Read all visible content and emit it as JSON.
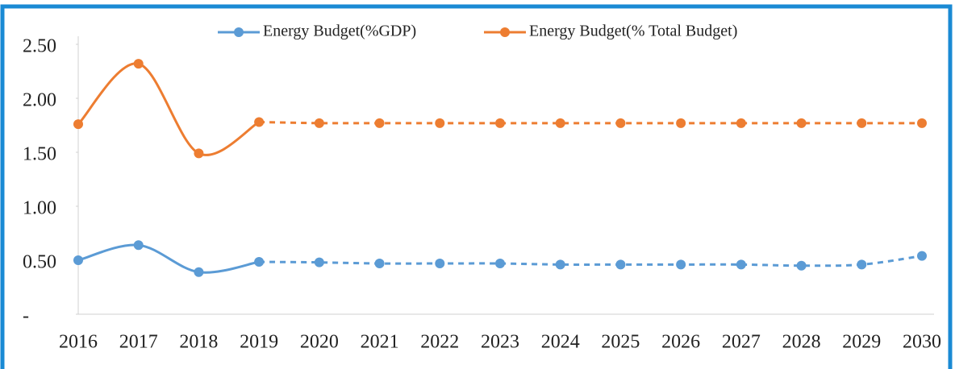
{
  "chart_data": {
    "type": "line",
    "categories": [
      "2016",
      "2017",
      "2018",
      "2019",
      "2020",
      "2021",
      "2022",
      "2023",
      "2024",
      "2025",
      "2026",
      "2027",
      "2028",
      "2029",
      "2030"
    ],
    "series": [
      {
        "name": "Energy Budget(%GDP)",
        "color": "#5b9bd5",
        "values": [
          0.5,
          0.64,
          0.39,
          0.485,
          0.48,
          0.47,
          0.47,
          0.47,
          0.46,
          0.46,
          0.46,
          0.46,
          0.45,
          0.46,
          0.54
        ]
      },
      {
        "name": "Energy Budget(% Total Budget)",
        "color": "#ed7d31",
        "values": [
          1.76,
          2.32,
          1.49,
          1.78,
          1.77,
          1.77,
          1.77,
          1.77,
          1.77,
          1.77,
          1.77,
          1.77,
          1.77,
          1.77,
          1.77
        ]
      }
    ],
    "dashed_from_index": 3,
    "ylim": [
      0,
      2.5
    ],
    "yticks": [
      {
        "value": 0,
        "label": "-"
      },
      {
        "value": 0.5,
        "label": "0.50"
      },
      {
        "value": 1,
        "label": "1.00"
      },
      {
        "value": 1.5,
        "label": "1.50"
      },
      {
        "value": 2,
        "label": "2.00"
      },
      {
        "value": 2.5,
        "label": "2.50"
      }
    ],
    "grid": false,
    "legend": "top"
  }
}
